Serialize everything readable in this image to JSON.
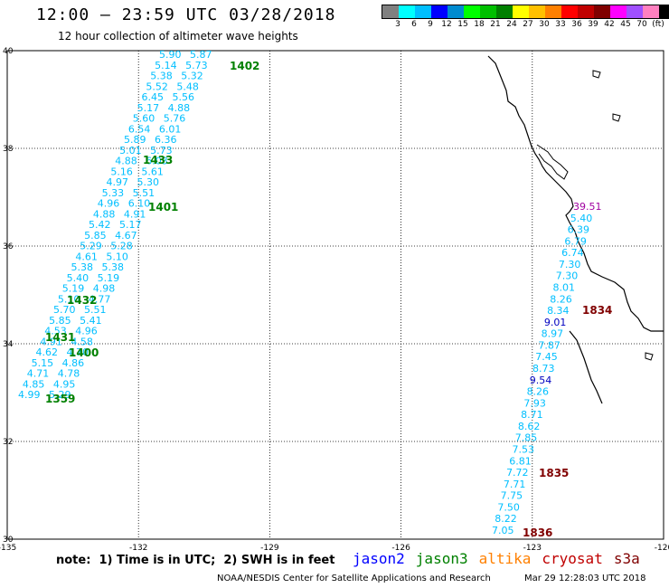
{
  "header": {
    "title": "12:00 – 23:59 UTC 03/28/2018",
    "subtitle": "12 hour collection of altimeter wave heights"
  },
  "legend": {
    "colors": [
      "#808080",
      "#00ffff",
      "#00bfff",
      "#0000ff",
      "#008bd0",
      "#00ff00",
      "#00c000",
      "#008000",
      "#ffff00",
      "#ffc000",
      "#ff8000",
      "#ff0000",
      "#c00000",
      "#800000",
      "#ff00ff",
      "#a050ff",
      "#ff80c0",
      "#000000"
    ],
    "labels": [
      "3",
      "6",
      "9",
      "12",
      "15",
      "18",
      "21",
      "24",
      "27",
      "30",
      "33",
      "36",
      "39",
      "42",
      "45",
      "70",
      "(ft)"
    ]
  },
  "map": {
    "x_ticks": [
      "-135",
      "-132",
      "-129",
      "-126",
      "-123",
      "-120"
    ],
    "y_ticks": [
      "40",
      "38",
      "36",
      "34",
      "32",
      "30"
    ],
    "lon_range": [
      -135,
      -120
    ],
    "lat_range": [
      30,
      40
    ]
  },
  "passes": [
    {
      "label": "1402",
      "color": "#008000"
    },
    {
      "label": "1433",
      "color": "#008000"
    },
    {
      "label": "1401",
      "color": "#008000"
    },
    {
      "label": "1432",
      "color": "#008000"
    },
    {
      "label": "1431",
      "color": "#008000"
    },
    {
      "label": "1400",
      "color": "#008000"
    },
    {
      "label": "1359",
      "color": "#008000"
    },
    {
      "label": "1834",
      "color": "#800000"
    },
    {
      "label": "1835",
      "color": "#800000"
    },
    {
      "label": "1836",
      "color": "#800000"
    }
  ],
  "measurements": {
    "track_a": [
      "5.90",
      "5.87",
      "5.14",
      "5.73",
      "5.38",
      "5.32",
      "5.52",
      "5.48",
      "6.45",
      "5.56",
      "5.17",
      "4.88",
      "5.60",
      "5.76",
      "6.54",
      "6.01",
      "5.89",
      "6.36",
      "5.01",
      "5.73",
      "4.88",
      "6.03",
      "5.16",
      "5.61",
      "4.97",
      "5.30",
      "5.33",
      "5.51",
      "4.96",
      "6.10",
      "4.88",
      "4.91",
      "5.42",
      "5.17",
      "5.85",
      "4.67",
      "5.29",
      "5.28",
      "4.61",
      "5.10",
      "5.38",
      "5.38",
      "5.40",
      "5.19",
      "5.19",
      "4.98",
      "5.10",
      "4.77",
      "5.70",
      "5.51",
      "5.85",
      "5.41",
      "4.53",
      "4.96",
      "4.91",
      "4.58",
      "4.62",
      "4.70",
      "5.15",
      "4.86",
      "4.71",
      "4.78",
      "4.85",
      "4.95",
      "4.99",
      "5.29"
    ],
    "track_b": [
      "39.51",
      "5.40",
      "6.39",
      "6.79",
      "6.74",
      "7.30",
      "7.30",
      "8.01",
      "8.26",
      "8.34",
      "9.01",
      "8.97",
      "7.87",
      "7.45",
      "8.73",
      "9.54",
      "8.26",
      "7.93",
      "8.71",
      "8.62",
      "7.85",
      "7.53",
      "6.81",
      "7.72",
      "7.71",
      "7.75",
      "7.50",
      "8.22",
      "7.05"
    ],
    "track_b_colors": [
      "#a000a0",
      "#00bfff",
      "#00bfff",
      "#00bfff",
      "#00bfff",
      "#00bfff",
      "#00bfff",
      "#00bfff",
      "#00bfff",
      "#00bfff",
      "#0000c0",
      "#00bfff",
      "#00bfff",
      "#00bfff",
      "#00bfff",
      "#0000c0",
      "#00bfff",
      "#00bfff",
      "#00bfff",
      "#00bfff",
      "#00bfff",
      "#00bfff",
      "#00bfff",
      "#00bfff",
      "#00bfff",
      "#00bfff",
      "#00bfff",
      "#00bfff",
      "#00bfff"
    ]
  },
  "footer": {
    "note": "note:  1) Time is in UTC;  2) SWH is in feet",
    "satellites": [
      {
        "name": "jason2",
        "color": "#0000ff"
      },
      {
        "name": "jason3",
        "color": "#008000"
      },
      {
        "name": "altika",
        "color": "#ff8000"
      },
      {
        "name": "cryosat",
        "color": "#c00000"
      },
      {
        "name": "s3a",
        "color": "#800000"
      }
    ],
    "credit": "NOAA/NESDIS Center for Satellite Applications and Research",
    "timestamp": "Mar 29 12:28:03 UTC 2018"
  }
}
